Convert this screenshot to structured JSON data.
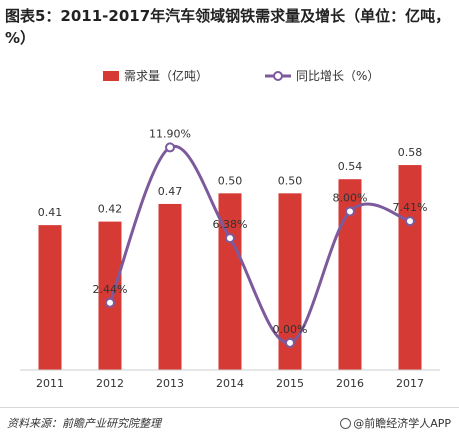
{
  "title": "图表5：2011-2017年汽车领域钢铁需求量及增长（单位：亿吨，%）",
  "footer": {
    "source": "资料来源：前瞻产业研究院整理",
    "brand": "@前瞻经济学人APP",
    "brand_icon": "qianzhan-logo-icon"
  },
  "colors": {
    "bar": "#d63a35",
    "line": "#7d5a9c",
    "marker": "#ffffff"
  },
  "chart_data": {
    "type": "bar",
    "categories": [
      "2011",
      "2012",
      "2013",
      "2014",
      "2015",
      "2016",
      "2017"
    ],
    "series": [
      {
        "name": "需求量（亿吨）",
        "type": "bar",
        "values": [
          0.41,
          0.42,
          0.47,
          0.5,
          0.5,
          0.54,
          0.58
        ],
        "labels": [
          "0.41",
          "0.42",
          "0.47",
          "0.50",
          "0.50",
          "0.54",
          "0.58"
        ]
      },
      {
        "name": "同比增长（%）",
        "type": "line",
        "smooth": true,
        "x": [
          "2012",
          "2013",
          "2014",
          "2015",
          "2016",
          "2017"
        ],
        "values": [
          2.44,
          11.9,
          6.38,
          0.0,
          8.0,
          7.41
        ],
        "labels": [
          "2.44%",
          "11.90%",
          "6.38%",
          "0.00%",
          "8.00%",
          "7.41%"
        ]
      }
    ],
    "bar_ylim": [
      0,
      0.75
    ],
    "line_ylim": [
      -0.8,
      12.9
    ],
    "legend_position": "top",
    "grid": false
  }
}
